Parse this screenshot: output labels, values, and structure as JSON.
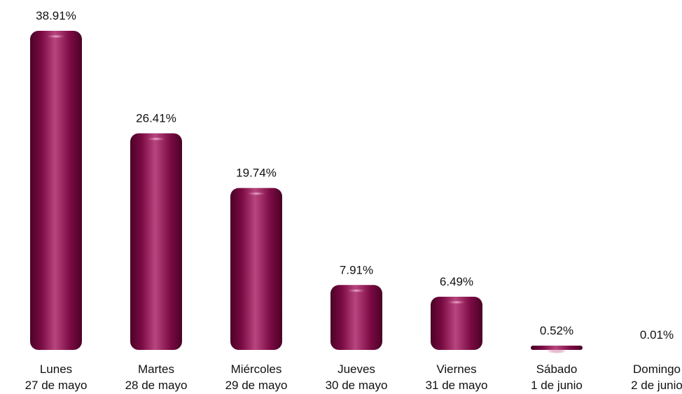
{
  "chart_data": {
    "type": "bar",
    "title": "",
    "xlabel": "",
    "ylabel": "",
    "categories": [
      [
        "Lunes",
        "27 de mayo"
      ],
      [
        "Martes",
        "28 de mayo"
      ],
      [
        "Miércoles",
        "29 de mayo"
      ],
      [
        "Jueves",
        "30 de mayo"
      ],
      [
        "Viernes",
        "31 de mayo"
      ],
      [
        "Sábado",
        "1 de junio"
      ],
      [
        "Domingo",
        "2 de junio"
      ]
    ],
    "values": [
      38.91,
      26.41,
      19.74,
      7.91,
      6.49,
      0.52,
      0.01
    ],
    "value_labels": [
      "38.91%",
      "26.41%",
      "19.74%",
      "7.91%",
      "6.49%",
      "0.52%",
      "0.01%"
    ],
    "ylim": [
      0,
      38.91
    ],
    "grid": false,
    "legend": "none",
    "colors": {
      "bar_base": "#7a0a43",
      "bar_dark": "#4a0326",
      "bar_light": "#b8457e",
      "highlight": "#f2c1d9"
    }
  }
}
